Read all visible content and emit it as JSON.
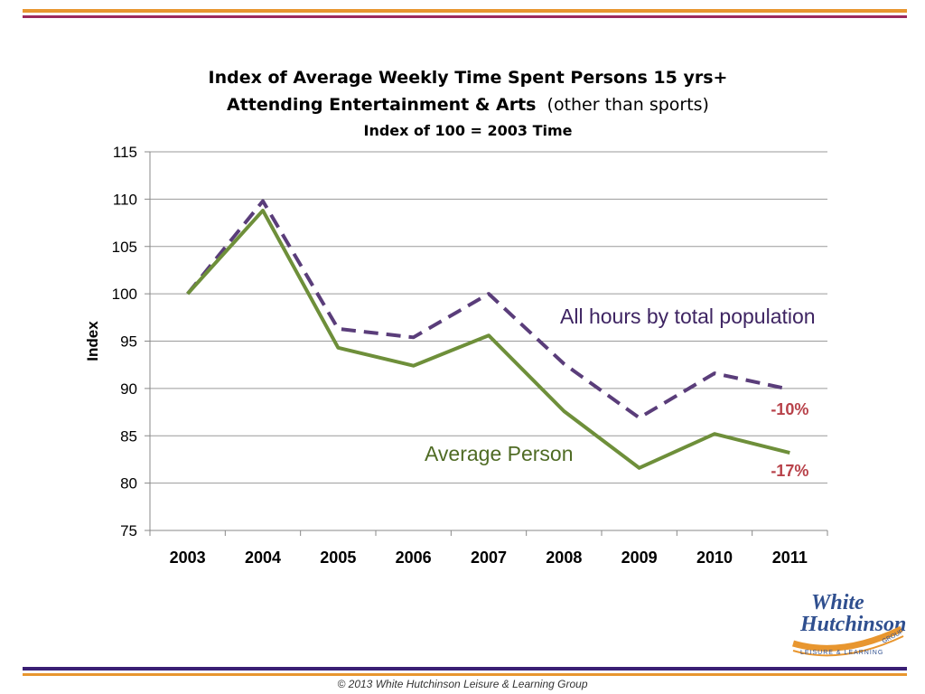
{
  "chart_data": {
    "type": "line",
    "title_line1": "Index of Average Weekly Time Spent Persons 15 yrs+",
    "title_line2_bold": "Attending Entertainment & Arts",
    "title_line2_normal": "(other than sports)",
    "subtitle": "Index of 100 = 2003 Time",
    "xlabel": "",
    "ylabel": "Index",
    "ylim": [
      75,
      115
    ],
    "yticks": [
      75,
      80,
      85,
      90,
      95,
      100,
      105,
      110,
      115
    ],
    "grid": true,
    "categories": [
      "2003",
      "2004",
      "2005",
      "2006",
      "2007",
      "2008",
      "2009",
      "2010",
      "2011"
    ],
    "series": [
      {
        "name": "All hours by total population",
        "values": [
          100,
          109.8,
          96.3,
          95.4,
          100,
          92.6,
          86.9,
          91.6,
          89.9
        ],
        "color": "#5a3d7a",
        "style": "dashed",
        "end_label": "-10%"
      },
      {
        "name": "Average Person",
        "values": [
          100,
          108.8,
          94.3,
          92.4,
          95.6,
          87.6,
          81.6,
          85.2,
          83.2
        ],
        "color": "#6e8f3a",
        "style": "solid",
        "end_label": "-17%"
      }
    ],
    "annotation_color": "#b8424a"
  },
  "logo": {
    "line1": "White",
    "line2": "Hutchinson",
    "tagline": "LEISURE & LEARNING",
    "group": "GROUP"
  },
  "footer": "© 2013 White Hutchinson Leisure & Learning Group"
}
